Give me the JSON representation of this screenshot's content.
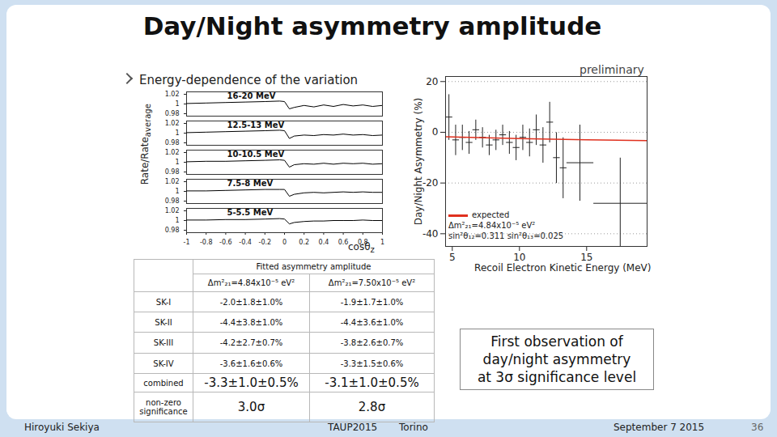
{
  "slide": {
    "title": "Day/Night asymmetry amplitude",
    "stamp": "preliminary",
    "bullet": "Energy-dependence of the variation",
    "callout": [
      "First observation of",
      "day/night asymmetry",
      "at 3σ significance level"
    ],
    "footer": {
      "author": "Hiroyuki Sekiya",
      "conference": "TAUP2015",
      "place": "Torino",
      "date": "September 7 2015",
      "page": "36"
    }
  },
  "chart_data": [
    {
      "type": "line",
      "x_label": "cosθ",
      "x_label_subscript": "z",
      "y_label": "Rate/Rate",
      "y_label_subscript": "average",
      "color": "#000000",
      "x": [
        -1,
        -0.8,
        -0.6,
        -0.4,
        -0.2,
        -0.05,
        0,
        0.05,
        0.1,
        0.2,
        0.3,
        0.4,
        0.5,
        0.6,
        0.7,
        0.8,
        0.9,
        1
      ],
      "xlim": [
        -1,
        1
      ],
      "xticks": [
        -1,
        -0.8,
        -0.6,
        -0.4,
        -0.2,
        0,
        0.2,
        0.4,
        0.6,
        0.8,
        1
      ],
      "ylim": [
        0.975,
        1.025
      ],
      "yticks": [
        0.98,
        1,
        1.02
      ],
      "series": [
        {
          "name": "16-20 MeV",
          "values": [
            1.001,
            1.002,
            1.003,
            1.004,
            1.005,
            1.006,
            1.005,
            0.99,
            0.993,
            0.997,
            0.994,
            0.998,
            0.995,
            0.999,
            0.996,
            0.998,
            0.995,
            0.997
          ]
        },
        {
          "name": "12.5-13 MeV",
          "values": [
            1.001,
            1.002,
            1.003,
            1.004,
            1.005,
            1.006,
            1.005,
            0.989,
            0.994,
            0.996,
            0.995,
            0.997,
            0.996,
            0.998,
            0.996,
            0.997,
            0.995,
            0.996
          ]
        },
        {
          "name": "10-10.5 MeV",
          "values": [
            1.001,
            1.002,
            1.002,
            1.003,
            1.004,
            1.005,
            1.004,
            0.99,
            0.995,
            0.997,
            0.996,
            0.998,
            0.996,
            0.998,
            0.997,
            0.998,
            0.996,
            0.997
          ]
        },
        {
          "name": "7.5-8 MeV",
          "values": [
            1.001,
            1.001,
            1.002,
            1.003,
            1.004,
            1.004,
            1.004,
            0.99,
            0.994,
            0.997,
            0.998,
            0.997,
            0.998,
            0.999,
            0.998,
            0.999,
            0.998,
            0.998
          ]
        },
        {
          "name": "5-5.5 MeV",
          "values": [
            1.001,
            1.001,
            1.002,
            1.002,
            1.003,
            1.004,
            1.003,
            0.993,
            0.996,
            0.998,
            0.999,
            0.999,
            1.0,
            1.0,
            1.0,
            1.001,
            1.0,
            1.0
          ]
        }
      ]
    },
    {
      "type": "scatter",
      "x_label": "Recoil Electron Kinetic Energy (MeV)",
      "y_label": "Day/Night Asymmetry (%)",
      "xlim": [
        4.5,
        19.5
      ],
      "xticks": [
        5,
        10,
        15
      ],
      "ylim": [
        -45,
        22
      ],
      "yticks": [
        -40,
        -20,
        0,
        20
      ],
      "grid": true,
      "legend": "bottom-left",
      "points": {
        "color": "#222222",
        "x": [
          4.75,
          5.25,
          5.75,
          6.25,
          6.75,
          7.25,
          7.75,
          8.25,
          8.75,
          9.25,
          9.75,
          10.25,
          10.75,
          11.25,
          11.75,
          12.25,
          12.75,
          13.25,
          14.5,
          17.5
        ],
        "values": [
          6,
          -3,
          -2,
          -4,
          1,
          -2,
          -5,
          -3,
          -1,
          -4,
          -6,
          -2,
          -4,
          1,
          -5,
          4,
          -10,
          -14,
          -12,
          -28
        ],
        "y_error": [
          9,
          6,
          5,
          4.5,
          4,
          4,
          4,
          4,
          4,
          4.5,
          5,
          5,
          5.5,
          6,
          7,
          8,
          10,
          12,
          15,
          18
        ],
        "x_error": [
          0.25,
          0.25,
          0.25,
          0.25,
          0.25,
          0.25,
          0.25,
          0.25,
          0.25,
          0.25,
          0.25,
          0.25,
          0.25,
          0.25,
          0.25,
          0.25,
          0.25,
          0.25,
          1,
          2
        ]
      },
      "series": [
        {
          "name": "expected",
          "type": "line",
          "color": "#e0301e",
          "x": [
            4.5,
            10,
            15,
            19.5
          ],
          "values": [
            -1.8,
            -2.5,
            -3,
            -3.3
          ]
        }
      ],
      "annotations": [
        "Δm²₂₁=4.84x10⁻⁵ eV²",
        "sin²θ₁₂=0.311 sin²θ₁₃=0.025"
      ]
    }
  ],
  "table": {
    "caption": "Fitted asymmetry amplitude",
    "columns": [
      "Δm²₂₁=4.84x10⁻⁵ eV²",
      "Δm²₂₁=7.50x10⁻⁵ eV²"
    ],
    "rows": [
      [
        "SK-I",
        "-2.0±1.8±1.0%",
        "-1.9±1.7±1.0%"
      ],
      [
        "SK-II",
        "-4.4±3.8±1.0%",
        "-4.4±3.6±1.0%"
      ],
      [
        "SK-III",
        "-4.2±2.7±0.7%",
        "-3.8±2.6±0.7%"
      ],
      [
        "SK-IV",
        "-3.6±1.6±0.6%",
        "-3.3±1.5±0.6%"
      ],
      [
        "combined",
        "-3.3±1.0±0.5%",
        "-3.1±1.0±0.5%"
      ],
      [
        "non-zero significance",
        "3.0σ",
        "2.8σ"
      ]
    ]
  }
}
